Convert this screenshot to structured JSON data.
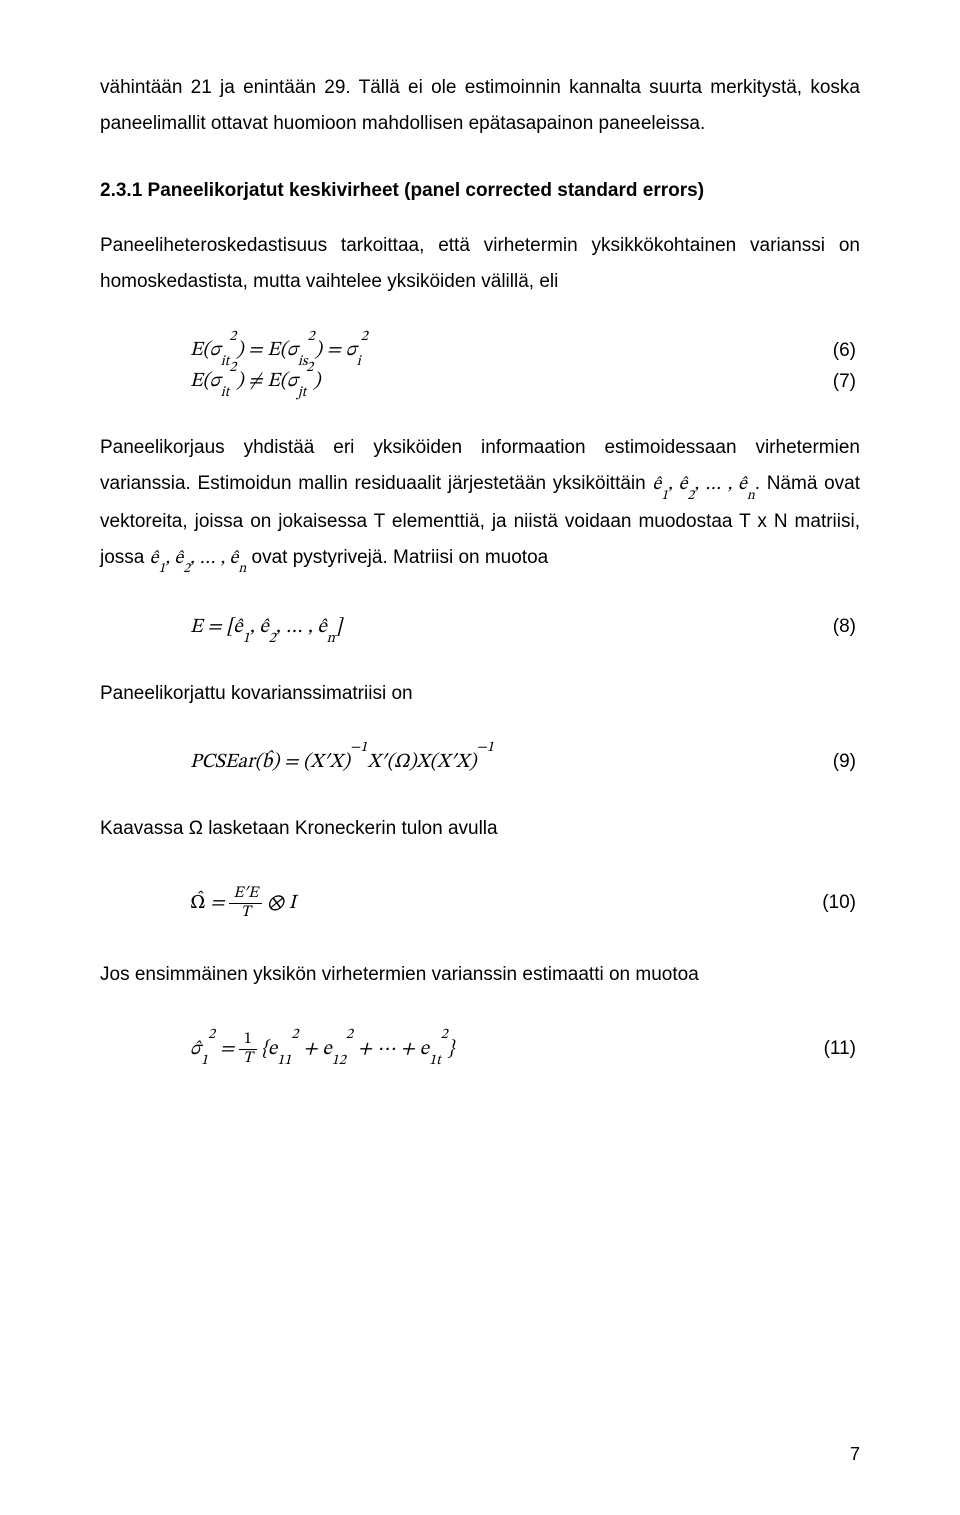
{
  "para1": "vähintään 21 ja enintään 29. Tällä ei ole estimoinnin kannalta suurta merkitystä, koska paneelimallit ottavat huomioon mahdollisen epätasapainon paneeleissa.",
  "heading231": "2.3.1 Paneelikorjatut keskivirheet (panel corrected standard errors)",
  "para2": "Paneeliheteroskedastisuus tarkoittaa, että virhetermin yksikkökohtainen varianssi on homoskedastista, mutta vaihtelee yksiköiden välillä, eli",
  "eq6": {
    "math": "E(σ<sub>it</sub><sup>2</sup>) = E(σ<sub>is</sub><sup>2</sup>) = σ<sub>i</sub><sup>2</sup>",
    "num": "(6)"
  },
  "eq7": {
    "math": "E(σ<sub>it</sub><sup>2</sup>) ≠ E(σ<sub>jt</sub><sup>2</sup>)",
    "num": "(7)"
  },
  "para3a": "Paneelikorjaus yhdistää eri yksiköiden informaation estimoidessaan virhetermien varianssia. Estimoidun mallin residuaalit järjestetään yksiköittäin ",
  "para3m1": "ê<sub>1</sub>, ê<sub>2</sub>, … , ê<sub>n</sub>",
  "para3b": ". Nämä ovat vektoreita, joissa on jokaisessa T elementtiä, ja niistä voidaan muodostaa T x N matriisi, jossa ",
  "para3m2": "ê<sub>1</sub>, ê<sub>2</sub>, … , ê<sub>n</sub>",
  "para3c": " ovat pystyrivejä. Matriisi on muotoa",
  "eq8": {
    "math": "E = [ê<sub>1</sub>, ê<sub>2</sub>, … , ê<sub>n</sub>]",
    "num": "(8)"
  },
  "para4": "Paneelikorjattu kovarianssimatriisi on",
  "eq9": {
    "math": "PCSEar(b̂) = (X′X)<sup>−1</sup>X′(Ω)X(X′X)<sup>−1</sup>",
    "num": "(9)"
  },
  "para5": "Kaavassa Ω lasketaan Kroneckerin tulon avulla",
  "eq10": {
    "num": "(10)"
  },
  "para6": "Jos ensimmäinen yksikön virhetermien varianssin estimaatti on muotoa",
  "eq11": {
    "num": "(11)"
  },
  "pageNum": "7"
}
